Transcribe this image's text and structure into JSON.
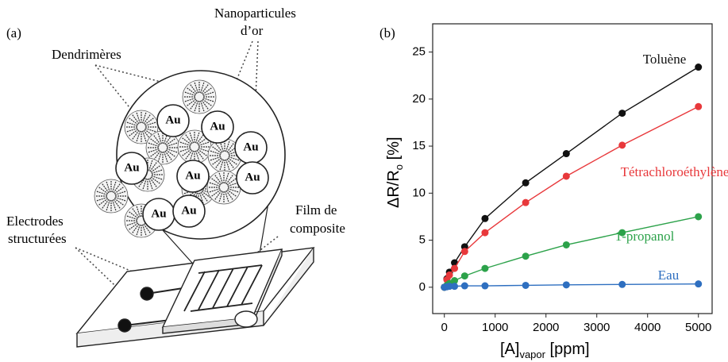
{
  "panel_a": {
    "label": "(a)",
    "nanoparticles": [
      "Nanoparticules",
      "d’or"
    ],
    "dendrimers": "Dendrimères",
    "electrodes": [
      "Electrodes",
      "structurées"
    ],
    "film": [
      "Film de",
      "composite"
    ],
    "particle": "Au"
  },
  "chart_data": {
    "type": "line",
    "panel_label": "(b)",
    "x_label": {
      "main": "[A]",
      "sub": "vapor",
      "tail": " [ppm]"
    },
    "y_label": {
      "main": "ΔR/R",
      "sub": "o",
      "tail": " [%]"
    },
    "x": [
      0,
      50,
      100,
      200,
      400,
      800,
      1600,
      2400,
      3500,
      5000
    ],
    "series": [
      {
        "name": "Toluène",
        "color": "#111111",
        "values": [
          0,
          0.9,
          1.6,
          2.6,
          4.3,
          7.3,
          11.1,
          14.2,
          18.5,
          23.4
        ]
      },
      {
        "name": "Tétrachloroéthylène",
        "color": "#e8383b",
        "values": [
          0,
          0.8,
          1.3,
          2.0,
          3.8,
          5.8,
          9.0,
          11.8,
          15.1,
          19.2
        ]
      },
      {
        "name": "1-propanol",
        "color": "#2ca24a",
        "values": [
          0,
          0.2,
          0.4,
          0.7,
          1.2,
          2.0,
          3.3,
          4.5,
          5.8,
          7.5
        ]
      },
      {
        "name": "Eau",
        "color": "#2e6fc0",
        "values": [
          0,
          0.05,
          0.1,
          0.1,
          0.15,
          0.15,
          0.2,
          0.25,
          0.3,
          0.35
        ]
      }
    ],
    "xlim": [
      -230,
      5270
    ],
    "ylim": [
      -2.8,
      28
    ],
    "xticks": [
      0,
      1000,
      2000,
      3000,
      4000,
      5000
    ],
    "yticks": [
      0,
      5,
      10,
      15,
      20,
      25
    ]
  }
}
